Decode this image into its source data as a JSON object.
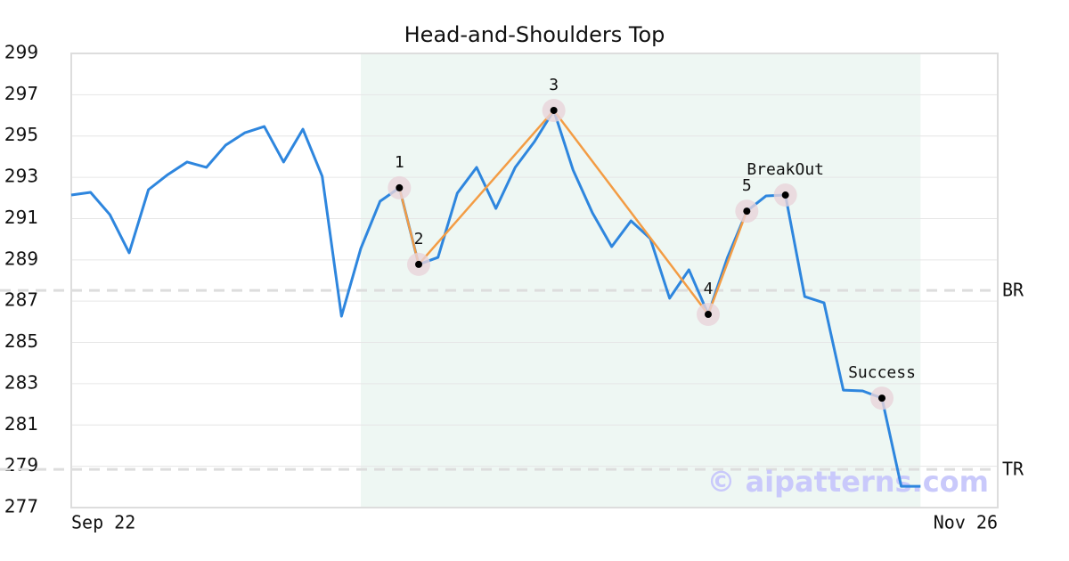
{
  "chart_data": {
    "type": "line",
    "title": "Head-and-Shoulders Top",
    "categories": [
      "Sep 22",
      null,
      null,
      null,
      null,
      null,
      null,
      null,
      null,
      null,
      null,
      null,
      null,
      null,
      null,
      null,
      null,
      null,
      null,
      null,
      null,
      null,
      null,
      null,
      null,
      null,
      null,
      null,
      null,
      null,
      null,
      null,
      null,
      null,
      null,
      null,
      null,
      null,
      null,
      null,
      null,
      null,
      null,
      null,
      null,
      null,
      null,
      null,
      "Nov 26"
    ],
    "values": [
      292.14,
      292.27,
      291.19,
      289.34,
      292.4,
      293.13,
      293.74,
      293.48,
      294.56,
      295.16,
      295.46,
      293.74,
      295.33,
      293.05,
      286.27,
      289.55,
      291.84,
      292.49,
      288.78,
      289.12,
      292.23,
      293.48,
      291.49,
      293.48,
      294.73,
      296.24,
      293.35,
      291.28,
      289.64,
      290.89,
      290.03,
      287.14,
      288.52,
      286.36,
      289.12,
      291.36,
      292.1,
      292.14,
      287.22,
      286.92,
      282.69,
      282.65,
      282.3,
      278.03,
      278.03,
      null,
      null,
      null,
      null
    ],
    "color": "#2e86de",
    "ylim": [
      277,
      299
    ],
    "yticks": [
      277,
      279,
      281,
      283,
      285,
      287,
      289,
      291,
      293,
      295,
      297,
      299
    ],
    "grid": true,
    "highlight_range": [
      15,
      44
    ],
    "highlight_color": "#eef7f3",
    "pattern": {
      "color": "#f39c44",
      "x": [
        17,
        18,
        25,
        33,
        35
      ],
      "values": [
        292.49,
        288.78,
        296.24,
        286.36,
        291.36
      ],
      "labels": [
        "1",
        "2",
        "3",
        "4",
        "5"
      ]
    },
    "signals": {
      "x": [
        37,
        42
      ],
      "values": [
        292.14,
        282.3
      ],
      "labels": [
        "BreakOut",
        "Success"
      ]
    },
    "levels": [
      {
        "label": "BR",
        "value": 287.52
      },
      {
        "label": "TR",
        "value": 278.85
      }
    ],
    "watermark": "© aipatterns.com"
  }
}
